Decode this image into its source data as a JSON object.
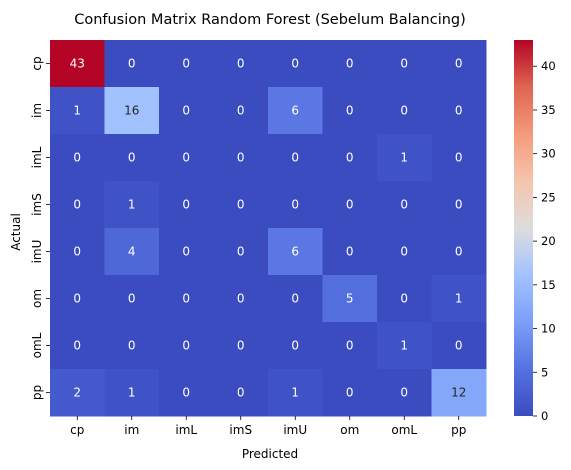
{
  "chart_data": {
    "type": "heatmap",
    "title": "Confusion Matrix Random Forest (Sebelum Balancing)",
    "xlabel": "Predicted",
    "ylabel": "Actual",
    "x_categories": [
      "cp",
      "im",
      "imL",
      "imS",
      "imU",
      "om",
      "omL",
      "pp"
    ],
    "y_categories": [
      "cp",
      "im",
      "imL",
      "imS",
      "imU",
      "om",
      "omL",
      "pp"
    ],
    "values": [
      [
        43,
        0,
        0,
        0,
        0,
        0,
        0,
        0
      ],
      [
        1,
        16,
        0,
        0,
        6,
        0,
        0,
        0
      ],
      [
        0,
        0,
        0,
        0,
        0,
        0,
        1,
        0
      ],
      [
        0,
        1,
        0,
        0,
        0,
        0,
        0,
        0
      ],
      [
        0,
        4,
        0,
        0,
        6,
        0,
        0,
        0
      ],
      [
        0,
        0,
        0,
        0,
        0,
        5,
        0,
        1
      ],
      [
        0,
        0,
        0,
        0,
        0,
        0,
        1,
        0
      ],
      [
        2,
        1,
        0,
        0,
        1,
        0,
        0,
        12
      ]
    ],
    "vmin": 0,
    "vmax": 43,
    "colormap": "coolwarm",
    "colorbar_ticks": [
      0,
      5,
      10,
      15,
      20,
      25,
      30,
      35,
      40
    ],
    "annotations": true
  }
}
